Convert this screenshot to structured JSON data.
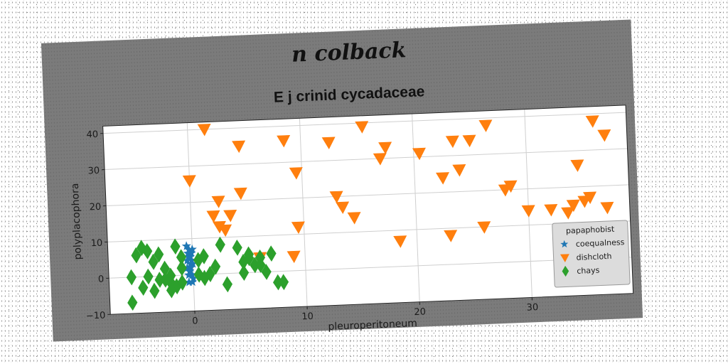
{
  "chart_data": {
    "type": "scatter",
    "suptitle": "n colback",
    "title": "E j crinid cycadaceae",
    "xlabel": "pleuroperitoneum",
    "ylabel": "polyplacophora",
    "xlim": [
      -7.5,
      39
    ],
    "ylim": [
      -10,
      42
    ],
    "xticks": [
      0,
      10,
      20,
      30
    ],
    "yticks": [
      -10,
      0,
      10,
      20,
      30,
      40
    ],
    "grid": true,
    "legend": {
      "title": "papaphobist",
      "placement": "lower-right"
    },
    "series": [
      {
        "name": "coequalness",
        "marker": "star",
        "color": "#1f77b4",
        "x": [
          -0.5,
          -0.4,
          -0.3,
          -0.2,
          -0.1,
          0.0,
          -0.5,
          -0.3,
          -0.1,
          0.0,
          -0.4,
          -0.2,
          -0.3,
          -0.1,
          -0.5,
          -0.2,
          0.0,
          -0.4,
          -0.1,
          -0.3
        ],
        "y": [
          8,
          6,
          7,
          5,
          4,
          3,
          2,
          1,
          0,
          -1,
          -2,
          3,
          5,
          6,
          4,
          2,
          7,
          0,
          -2,
          1
        ]
      },
      {
        "name": "dishcloth",
        "marker": "triangle-down",
        "color": "#ff7f0e",
        "x": [
          1.5,
          4.5,
          8.5,
          12.5,
          15.5,
          17.5,
          23.5,
          25,
          26.5,
          36,
          37,
          0,
          9.5,
          17,
          20.5,
          22.5,
          24,
          34.5,
          2.5,
          4.5,
          13,
          13.5,
          14.5,
          2,
          3.5,
          2.5,
          3,
          9.5,
          18.5,
          23,
          26,
          28,
          28.5,
          30,
          32,
          33.5,
          34,
          35,
          35.5,
          37,
          9,
          6
        ],
        "y": [
          40,
          35,
          36,
          35,
          39,
          33,
          34,
          34,
          38,
          38,
          34,
          26,
          27,
          30,
          31,
          24,
          26,
          26,
          20,
          22,
          20,
          17,
          14,
          16,
          16,
          13,
          12,
          12,
          7,
          8,
          10,
          20,
          21,
          14,
          14,
          13,
          15,
          16,
          17,
          14,
          4,
          4
        ]
      },
      {
        "name": "chays",
        "marker": "diamond",
        "color": "#2ca02c",
        "x": [
          -5,
          -4.5,
          -4,
          -3.5,
          -3,
          -2.5,
          -2,
          -1.5,
          -1,
          -5.5,
          -4,
          -3,
          -2,
          -1.5,
          -1,
          -4.5,
          -3.5,
          -2.5,
          -5.5,
          0.5,
          1,
          1.5,
          2,
          2.5,
          4,
          4.5,
          5,
          5.5,
          6,
          6.5,
          7,
          7.5,
          8,
          4.5,
          5,
          6,
          3,
          -1,
          0.5,
          1,
          -2
        ],
        "y": [
          6,
          8,
          7,
          4,
          6,
          2,
          0,
          8,
          5,
          0,
          0,
          -1,
          -2,
          -3,
          -2,
          -3,
          -4,
          -1,
          -7,
          4,
          5,
          0,
          2,
          8,
          7,
          3,
          5,
          2,
          4,
          0,
          5,
          -3,
          -3,
          0,
          4,
          2,
          -3,
          2,
          0,
          -1,
          -4
        ]
      }
    ]
  }
}
